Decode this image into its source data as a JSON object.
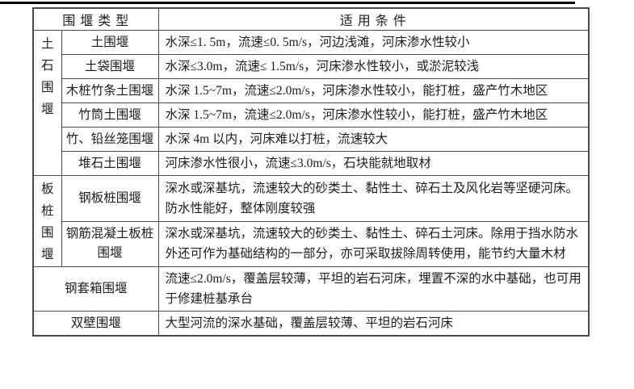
{
  "page": {
    "background": "#ffffff",
    "top_rule_color": "#000000",
    "border_color": "#4a4a4a",
    "text_color": "#1c1c1c"
  },
  "table": {
    "header": {
      "type_label": "围 堰 类 型",
      "condition_label": "适 用 条 件"
    },
    "rows": [
      {
        "group": "土石围堰",
        "name": "土围堰",
        "condition": "水深≤1. 5m，流速≤0. 5m/s，河边浅滩，河床渗水性较小"
      },
      {
        "group": "土石围堰",
        "name": "土袋围堰",
        "condition": "水深≤3.0m，流速≤ 1.5m/s，河床渗水性较小，或淤泥较浅"
      },
      {
        "group": "土石围堰",
        "name": "木桩竹条土围堰",
        "condition": "水深 1.5~7m，流速≤2.0m/s，河床渗水性较小，能打桩，盛产竹木地区"
      },
      {
        "group": "土石围堰",
        "name": "竹筒土围堰",
        "condition": "水深 1.5~7m，流速≤2.0m/s，河床渗水性较小，能打桩，盛产竹木地区"
      },
      {
        "group": "土石围堰",
        "name": "竹、铅丝笼围堰",
        "condition": "水深 4m 以内，河床难以打桩，流速较大"
      },
      {
        "group": "土石围堰",
        "name": "堆石土围堰",
        "condition": "河床渗水性很小，流速≤3.0m/s，石块能就地取材"
      },
      {
        "group": "板桩围堰",
        "name": "钢板桩围堰",
        "condition": "深水或深基坑，流速较大的砂类土、黏性土、碎石土及风化岩等坚硬河床。防水性能好，整体刚度较强"
      },
      {
        "group": "板桩围堰",
        "name": "钢筋混凝土板桩围堰",
        "condition": "深水或深基坑，流速较大的砂类土、黏性土、碎石土河床。除用于挡水防水外还可作为基础结构的一部分，亦可采取拔除周转使用，能节约大量木材"
      },
      {
        "group": null,
        "name": "钢套箱围堰",
        "condition": "流速≤2.0m/s，覆盖层较薄，平坦的岩石河床，埋置不深的水中基础，也可用于修建桩基承台"
      },
      {
        "group": null,
        "name": "双壁围堰",
        "condition": "大型河流的深水基础，覆盖层较薄、平坦的岩石河床"
      }
    ]
  }
}
